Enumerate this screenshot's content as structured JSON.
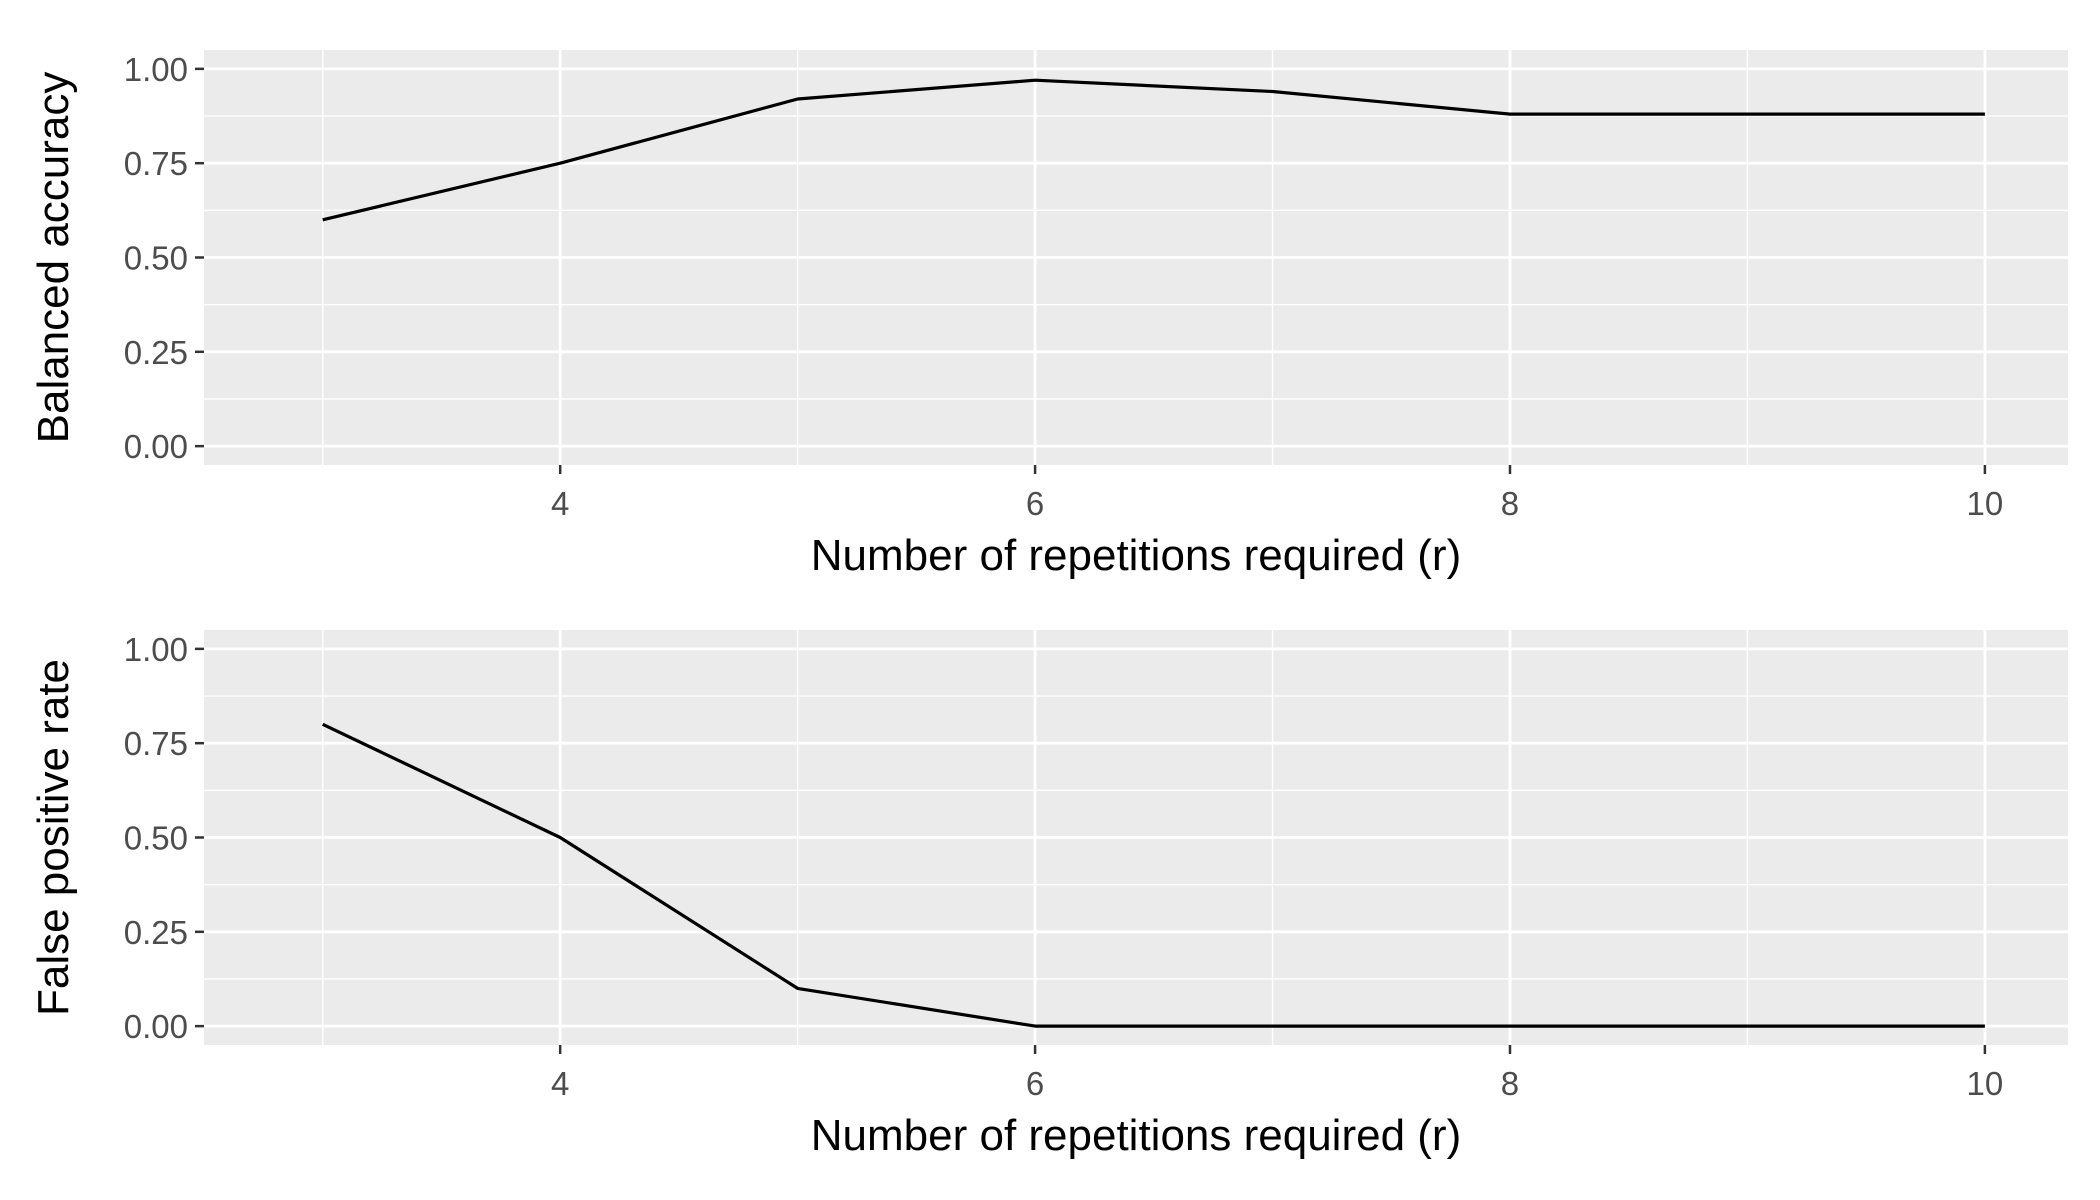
{
  "chart_data": [
    {
      "type": "line",
      "title": "",
      "xlabel": "Number of repetitions required (r)",
      "ylabel": "Balanced accuracy",
      "xlim": [
        2.5,
        10.35
      ],
      "ylim": [
        -0.05,
        1.05
      ],
      "x_ticks": [
        4,
        6,
        8,
        10
      ],
      "y_ticks": [
        0.0,
        0.25,
        0.5,
        0.75,
        1.0
      ],
      "y_tick_labels": [
        "0.00",
        "0.25",
        "0.50",
        "0.75",
        "1.00"
      ],
      "grid": true,
      "series": [
        {
          "x": [
            3,
            4,
            5,
            6,
            7,
            8,
            9,
            10
          ],
          "y": [
            0.6,
            0.75,
            0.92,
            0.97,
            0.94,
            0.88,
            0.88,
            0.88
          ],
          "color": "#000000"
        }
      ]
    },
    {
      "type": "line",
      "title": "",
      "xlabel": "Number of repetitions required (r)",
      "ylabel": "False positive rate",
      "xlim": [
        2.5,
        10.35
      ],
      "ylim": [
        -0.05,
        1.05
      ],
      "x_ticks": [
        4,
        6,
        8,
        10
      ],
      "y_ticks": [
        0.0,
        0.25,
        0.5,
        0.75,
        1.0
      ],
      "y_tick_labels": [
        "0.00",
        "0.25",
        "0.50",
        "0.75",
        "1.00"
      ],
      "grid": true,
      "series": [
        {
          "x": [
            3,
            4,
            5,
            6,
            7,
            8,
            9,
            10
          ],
          "y": [
            0.8,
            0.5,
            0.1,
            0.0,
            0.0,
            0.0,
            0.0,
            0.0
          ],
          "color": "#000000"
        }
      ]
    }
  ],
  "colors": {
    "panel_background": "#ebebeb",
    "grid": "#ffffff",
    "line": "#000000"
  }
}
